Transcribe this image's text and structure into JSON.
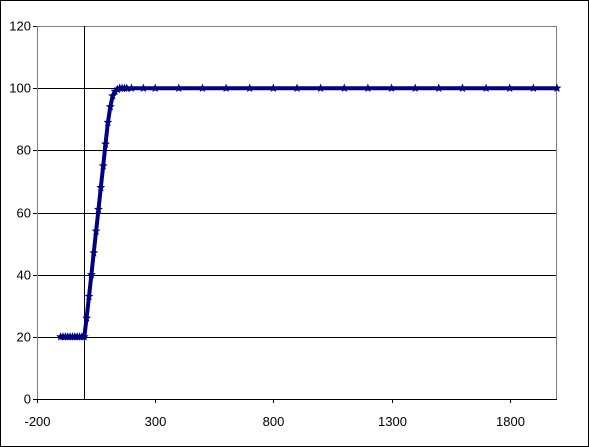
{
  "chart_data": {
    "type": "scatter",
    "title": "",
    "xlabel": "",
    "ylabel": "",
    "xlim": [
      -200,
      2000
    ],
    "ylim": [
      0,
      120
    ],
    "x_ticks": [
      -200,
      300,
      800,
      1300,
      1800
    ],
    "x_tick_labels": [
      "-200",
      "300",
      "800",
      "1300",
      "1800"
    ],
    "y_ticks": [
      0,
      20,
      40,
      60,
      80,
      100,
      120
    ],
    "y_tick_labels": [
      "0",
      "20",
      "40",
      "60",
      "80",
      "100",
      "120"
    ],
    "grid": {
      "x": false,
      "y": true
    },
    "legend": "none",
    "series": [
      {
        "color": "#000080",
        "marker": "star",
        "line": true,
        "x": [
          -100,
          -90,
          -80,
          -70,
          -60,
          -50,
          -40,
          -30,
          -20,
          -10,
          0,
          10,
          20,
          30,
          40,
          50,
          60,
          70,
          80,
          90,
          100,
          110,
          120,
          130,
          140,
          150,
          160,
          170,
          180,
          200,
          250,
          300,
          400,
          500,
          600,
          700,
          800,
          900,
          1000,
          1100,
          1200,
          1300,
          1400,
          1500,
          1600,
          1700,
          1800,
          1900,
          2000
        ],
        "y": [
          20,
          20,
          20,
          20,
          20,
          20,
          20,
          20,
          20,
          20,
          20,
          26,
          33,
          40,
          47,
          54,
          61,
          68,
          75,
          82,
          89,
          94,
          97.5,
          99,
          99.6,
          100,
          100,
          100,
          100,
          100,
          100,
          100,
          100,
          100,
          100,
          100,
          100,
          100,
          100,
          100,
          100,
          100,
          100,
          100,
          100,
          100,
          100,
          100,
          100
        ]
      }
    ]
  },
  "colors": {
    "series": "#000080",
    "grid": "#000000",
    "background": "#ffffff"
  }
}
